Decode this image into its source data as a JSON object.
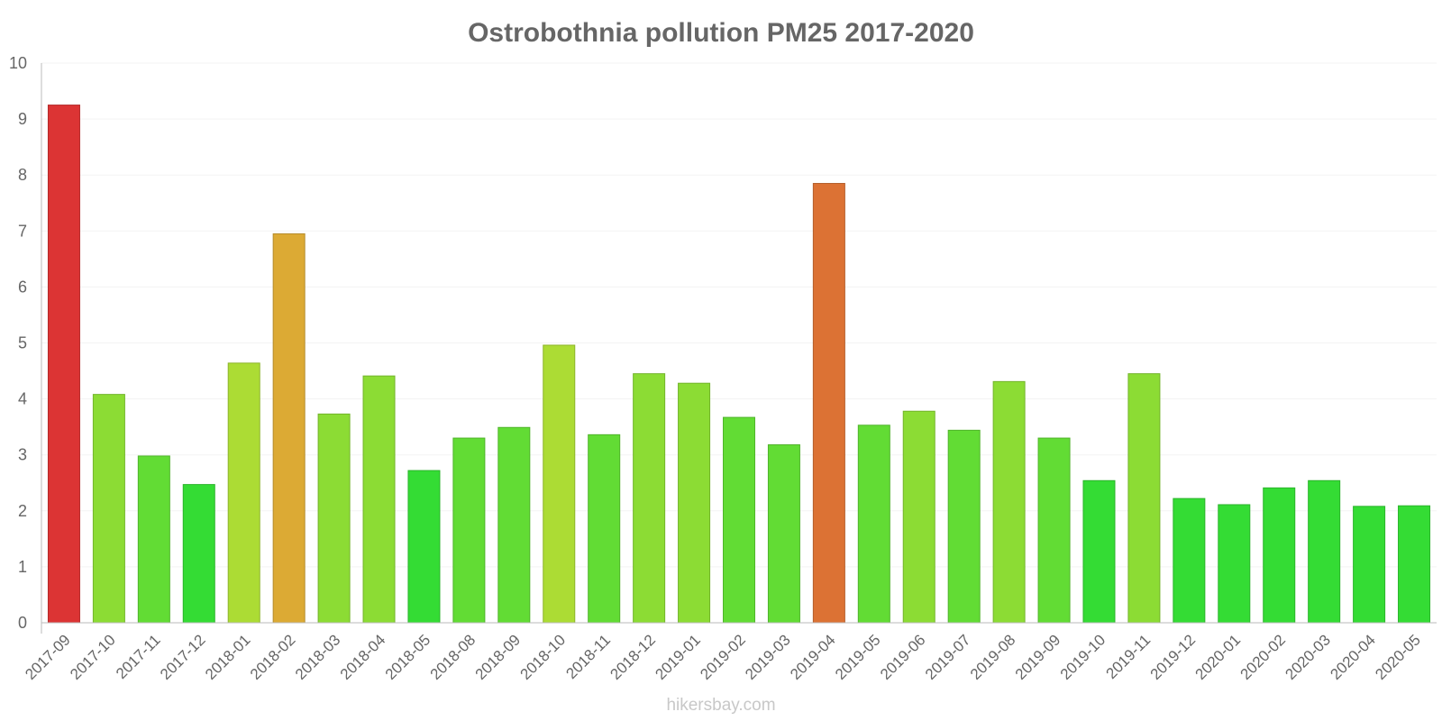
{
  "chart_data": {
    "type": "bar",
    "title": "Ostrobothnia pollution PM25 2017-2020",
    "xlabel": "",
    "ylabel": "",
    "ylim": [
      0,
      10
    ],
    "yticks": [
      0,
      1,
      2,
      3,
      4,
      5,
      6,
      7,
      8,
      9,
      10
    ],
    "grid": true,
    "categories": [
      "2017-09",
      "2017-10",
      "2017-11",
      "2017-12",
      "2018-01",
      "2018-02",
      "2018-03",
      "2018-04",
      "2018-05",
      "2018-08",
      "2018-09",
      "2018-10",
      "2018-11",
      "2018-12",
      "2019-01",
      "2019-02",
      "2019-03",
      "2019-04",
      "2019-05",
      "2019-06",
      "2019-07",
      "2019-08",
      "2019-09",
      "2019-10",
      "2019-11",
      "2019-12",
      "2020-01",
      "2020-02",
      "2020-03",
      "2020-04",
      "2020-05"
    ],
    "values": [
      9.25,
      4.08,
      2.98,
      2.47,
      4.64,
      6.95,
      3.73,
      4.41,
      2.72,
      3.3,
      3.49,
      4.96,
      3.36,
      4.45,
      4.28,
      3.67,
      3.18,
      7.85,
      3.53,
      3.78,
      3.44,
      4.31,
      3.3,
      2.54,
      4.45,
      2.22,
      2.11,
      2.41,
      2.54,
      2.08,
      2.09
    ],
    "colors": [
      "#dc3434",
      "#8cdc34",
      "#62dc34",
      "#34dc34",
      "#acdc34",
      "#dcaa34",
      "#8cdc34",
      "#8cdc34",
      "#34dc34",
      "#62dc34",
      "#62dc34",
      "#acdc34",
      "#62dc34",
      "#8cdc34",
      "#8cdc34",
      "#62dc34",
      "#62dc34",
      "#dc7234",
      "#62dc34",
      "#8cdc34",
      "#62dc34",
      "#8cdc34",
      "#62dc34",
      "#34dc34",
      "#8cdc34",
      "#34dc34",
      "#34dc34",
      "#34dc34",
      "#34dc34",
      "#34dc34",
      "#34dc34"
    ],
    "source": "hikersbay.com"
  }
}
